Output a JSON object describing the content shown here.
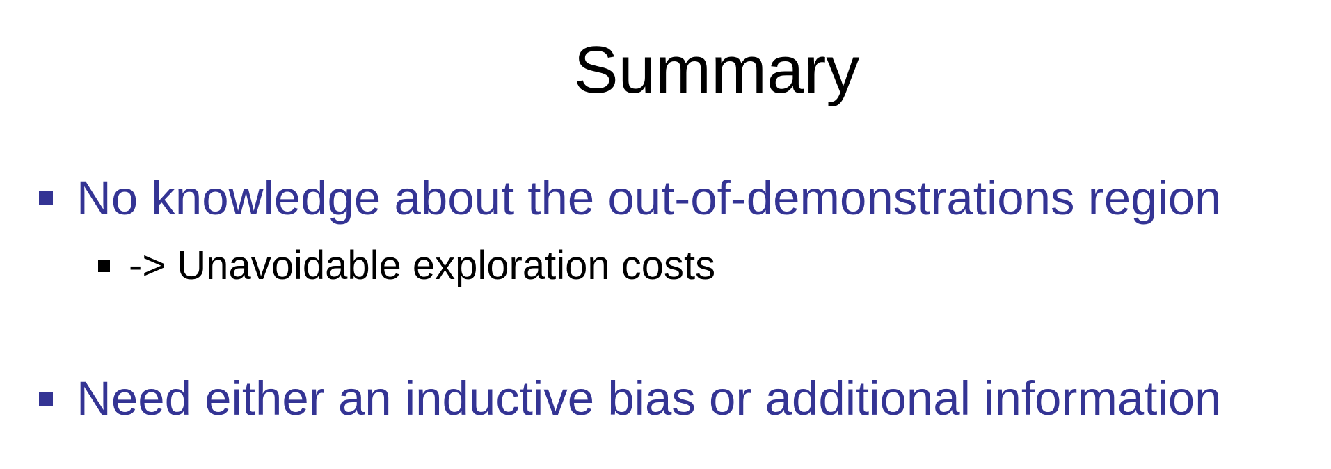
{
  "slide": {
    "title": "Summary",
    "colors": {
      "primary_text": "#343494",
      "secondary_text": "#000000",
      "title_text": "#000000",
      "background": "#ffffff"
    },
    "bullets": [
      {
        "level": 1,
        "text": "No knowledge about the out-of-demonstrations region",
        "marker": "square-bullet-icon",
        "sub_bullets": [
          {
            "level": 2,
            "text": "-> Unavoidable exploration costs",
            "marker": "square-bullet-icon"
          }
        ]
      },
      {
        "level": 1,
        "text": "Need either an inductive bias or additional information",
        "marker": "square-bullet-icon",
        "sub_bullets": []
      }
    ]
  }
}
